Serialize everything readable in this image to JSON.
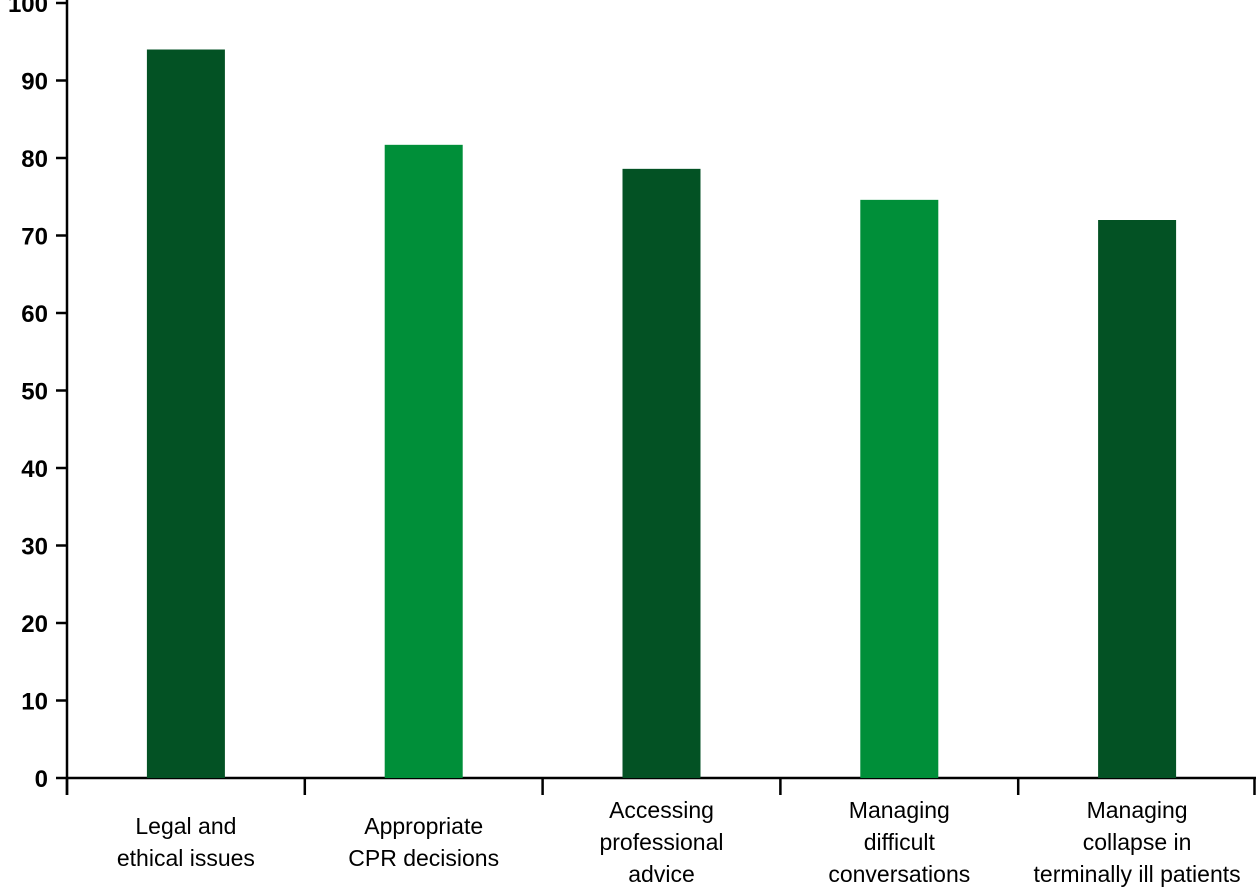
{
  "chart_data": {
    "type": "bar",
    "title": "",
    "xlabel": "",
    "ylabel": "",
    "ylim": [
      0,
      100
    ],
    "y_ticks": [
      0,
      10,
      20,
      30,
      40,
      50,
      60,
      70,
      80,
      90,
      100
    ],
    "grid": false,
    "legend": "none",
    "categories": [
      [
        "Legal and",
        "ethical issues"
      ],
      [
        "Appropriate",
        "CPR decisions"
      ],
      [
        "Accessing",
        "professional",
        "advice"
      ],
      [
        "Managing",
        "difficult",
        "conversations"
      ],
      [
        "Managing",
        "collapse in",
        "terminally ill patients"
      ]
    ],
    "values": [
      94,
      81.7,
      78.6,
      74.6,
      72
    ],
    "bar_colors": [
      "#035224",
      "#008f39",
      "#035224",
      "#008f39",
      "#035224"
    ]
  }
}
